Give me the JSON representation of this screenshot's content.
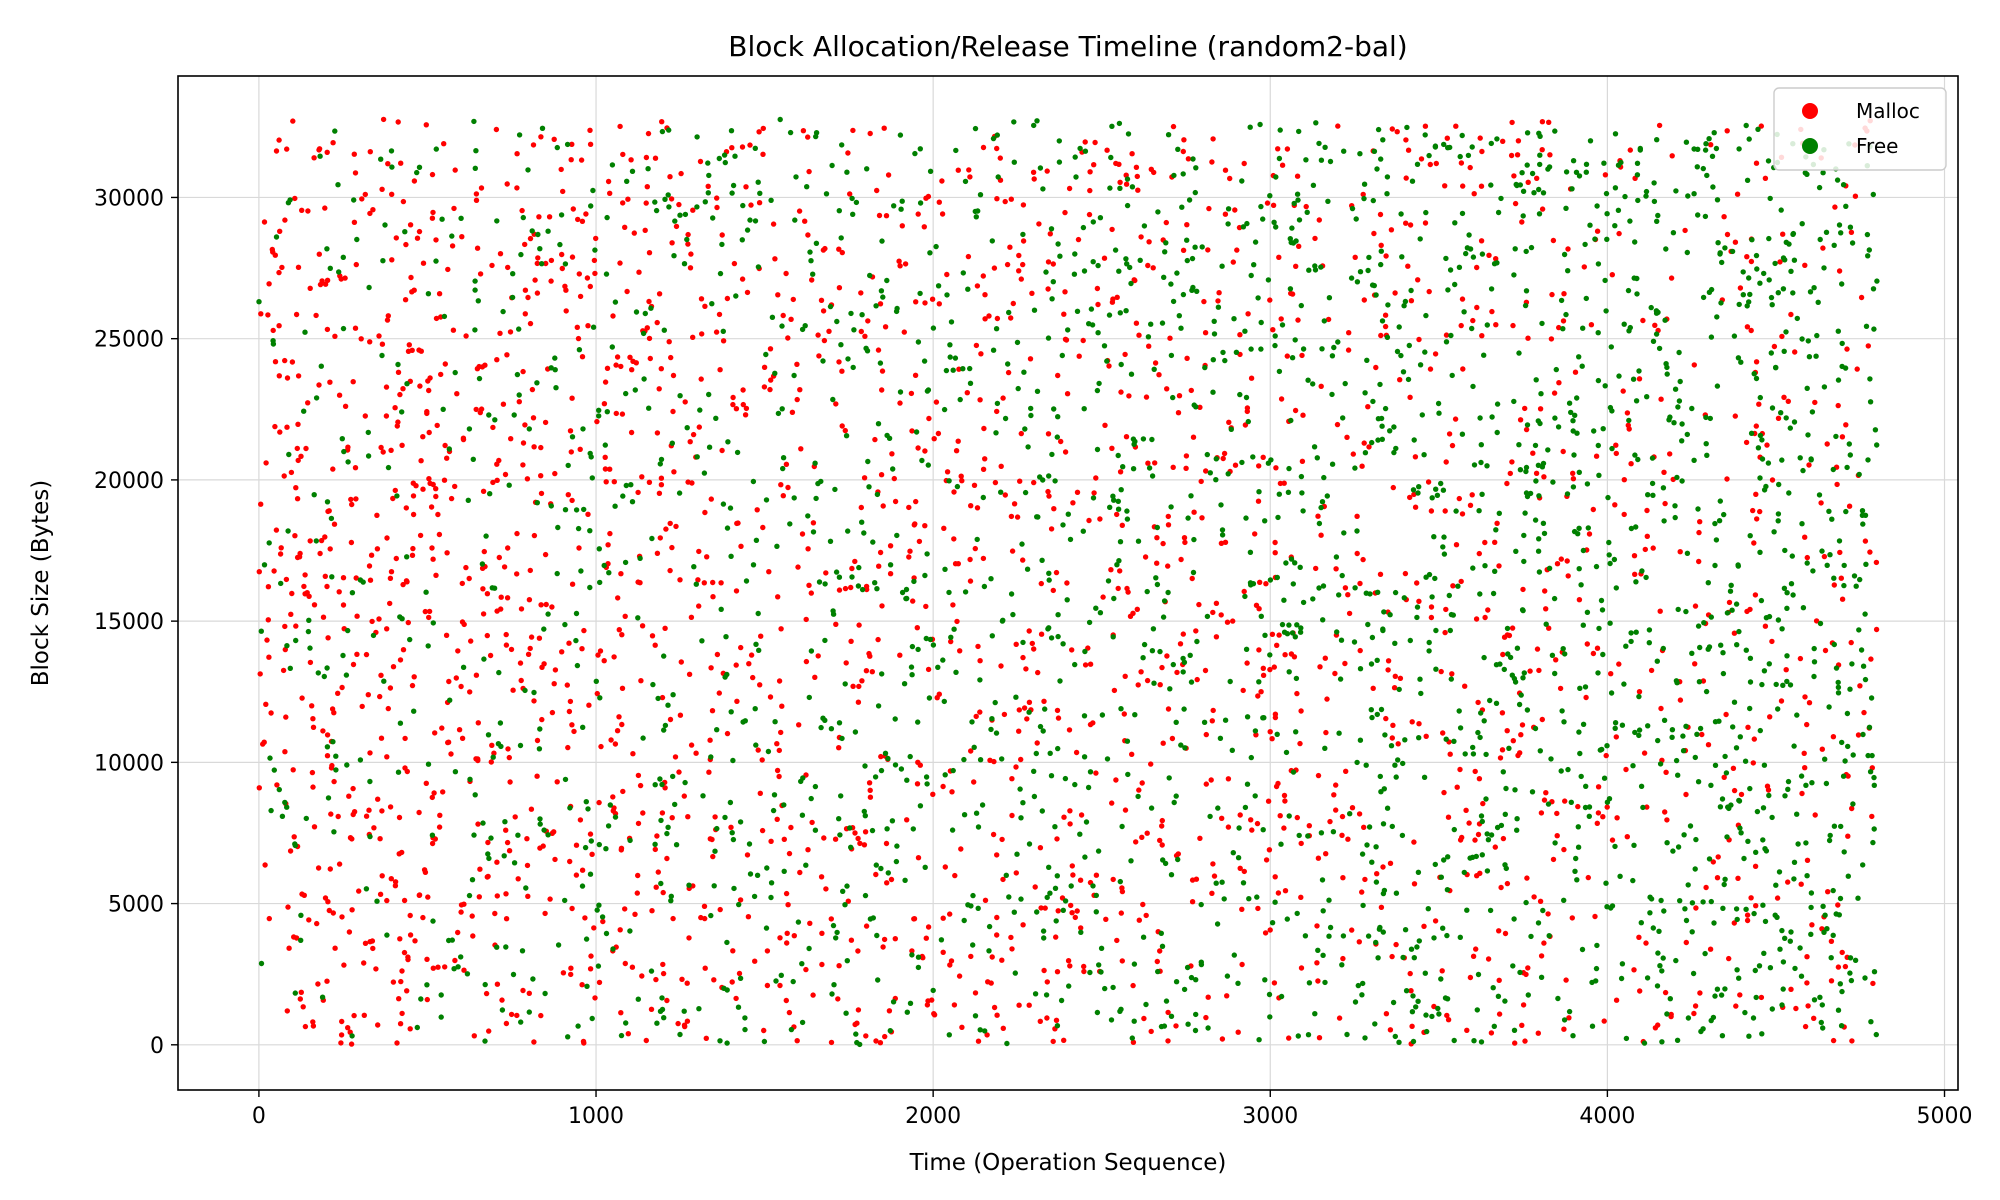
{
  "chart_data": {
    "type": "scatter",
    "title": "Block Allocation/Release Timeline (random2-bal)",
    "xlabel": "Time (Operation Sequence)",
    "ylabel": "Block Size (Bytes)",
    "xlim": [
      -240,
      5040
    ],
    "ylim": [
      -1600,
      34300
    ],
    "xticks": [
      0,
      1000,
      2000,
      3000,
      4000,
      5000
    ],
    "yticks": [
      0,
      5000,
      10000,
      15000,
      20000,
      25000,
      30000
    ],
    "grid": true,
    "legend_position": "top-right",
    "point_count_per_series": 2400,
    "x_max": 4800,
    "y_max": 32768,
    "series": [
      {
        "name": "Malloc",
        "color": "#ff0000",
        "distribution": "denser at early operations, thinning toward the end"
      },
      {
        "name": "Free",
        "color": "#008000",
        "distribution": "sparse at early operations, denser toward the end"
      }
    ]
  }
}
